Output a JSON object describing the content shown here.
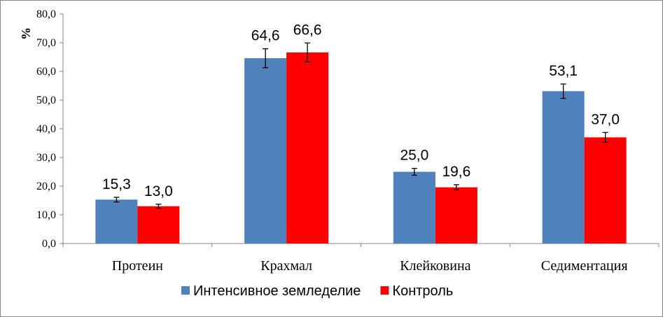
{
  "chart_data": {
    "type": "bar",
    "title": "",
    "xlabel": "",
    "ylabel": "%",
    "ylim": [
      0,
      80
    ],
    "ytick_step": 10,
    "ytick_labels": [
      "0,0",
      "10,0",
      "20,0",
      "30,0",
      "40,0",
      "50,0",
      "60,0",
      "70,0",
      "80,0"
    ],
    "categories": [
      "Протеин",
      "Крахмал",
      "Клейковина",
      "Седиментация"
    ],
    "series": [
      {
        "name": "Интенсивное земледелие",
        "color": "#4f81bd",
        "values": [
          15.3,
          64.6,
          25.0,
          53.1
        ],
        "labels": [
          "15,3",
          "64,6",
          "25,0",
          "53,1"
        ],
        "errors": [
          0.8,
          3.3,
          1.2,
          2.5
        ]
      },
      {
        "name": "Контроль",
        "color": "#ff0000",
        "values": [
          13.0,
          66.6,
          19.6,
          37.0
        ],
        "labels": [
          "13,0",
          "66,6",
          "19,6",
          "37,0"
        ],
        "errors": [
          0.7,
          3.3,
          0.9,
          1.7
        ]
      }
    ],
    "grid": false,
    "legend_position": "bottom"
  }
}
